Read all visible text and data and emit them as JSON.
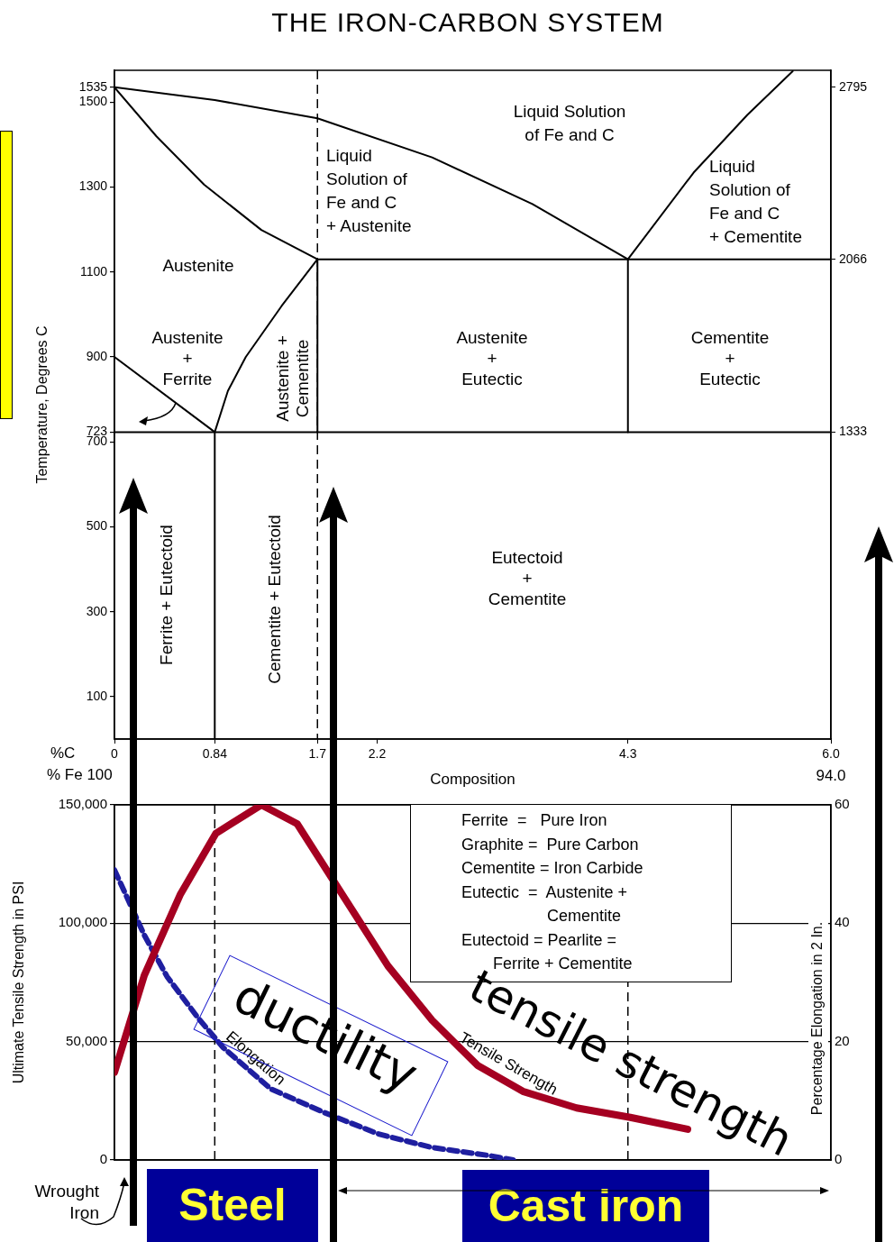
{
  "chart_data": [
    {
      "type": "line",
      "title": "THE IRON-CARBON SYSTEM",
      "xlabel": "Composition",
      "ylabel": "Temperature, Degrees C",
      "xlim": [
        0,
        6.0
      ],
      "xticks": [
        0,
        0.84,
        1.7,
        2.2,
        4.3,
        {
          "value": 6.0,
          "label": "6.0"
        }
      ],
      "ylim": [
        0,
        1575
      ],
      "yticks": [
        100,
        300,
        500,
        700,
        723,
        900,
        1100,
        1300,
        1500,
        1535
      ],
      "y2lim": [
        32,
        2867
      ],
      "y2ticks": [
        1333,
        2066,
        2795
      ],
      "grid": false,
      "legend": false,
      "marker": "none",
      "series": [
        {
          "color": "#000000",
          "x": [
            0,
            0.84,
            1.7,
            2.66,
            3.5,
            4.3
          ],
          "values": [
            1535,
            1505,
            1462,
            1370,
            1260,
            1130
          ]
        },
        {
          "color": "#000000",
          "x": [
            4.3,
            4.85,
            5.3,
            5.68
          ],
          "values": [
            1130,
            1334,
            1470,
            1573
          ]
        },
        {
          "color": "#000000",
          "x": [
            0,
            0.35,
            0.75,
            1.23,
            1.7
          ],
          "values": [
            1535,
            1420,
            1306,
            1199,
            1130
          ]
        },
        {
          "color": "#000000",
          "x": [
            1.7,
            6.0
          ],
          "values": [
            1130,
            1130
          ]
        },
        {
          "color": "#000000",
          "x": [
            0.84,
            0.84,
            0.95,
            1.1,
            1.4,
            1.7,
            1.7
          ],
          "values": [
            0,
            723,
            820,
            900,
            1020,
            1130,
            723
          ]
        },
        {
          "color": "#000000",
          "x": [
            0,
            0.84
          ],
          "values": [
            900,
            723
          ]
        },
        {
          "color": "#000000",
          "x": [
            0,
            6.0
          ],
          "values": [
            723,
            723
          ]
        },
        {
          "color": "#000000",
          "x": [
            4.3,
            4.3
          ],
          "values": [
            723,
            1130
          ]
        }
      ],
      "ref_lines": [
        {
          "axis": "x",
          "value": 1.7,
          "color": "#000000",
          "line_style": "dashed"
        }
      ],
      "annotations": [
        "Liquid Solution\nof Fe and C",
        "Liquid\nSolution of\nFe and C\n+ Austenite",
        "Liquid\nSolution of\nFe and C\n+ Cementite",
        "Austenite",
        "Austenite\n+\nFerrite",
        "Austenite +\nCementite",
        "Austenite\n+\nEutectic",
        "Cementite\n+\nEutectic",
        "Ferrite + Eutectoid",
        "Cementite + Eutectoid",
        "Eutectoid\n+\nCementite",
        "%C",
        "% Fe 100",
        "94.0"
      ]
    },
    {
      "type": "line",
      "ylabel": "Ultimate Tensile Strength in PSI",
      "y2label": "Percentage Elongation in 2 In.",
      "xlim": [
        0,
        6.0
      ],
      "ylim": [
        0,
        150000
      ],
      "yticks": [
        0,
        {
          "value": 50000,
          "label": "50,000"
        },
        {
          "value": 100000,
          "label": "100,000"
        },
        {
          "value": 150000,
          "label": "150,000"
        }
      ],
      "y2lim": [
        0,
        60
      ],
      "y2ticks": [
        0,
        20,
        40,
        60
      ],
      "tick_labels": "y",
      "grid": "y",
      "legend": false,
      "marker": "none",
      "series": [
        {
          "name": "Tensile Strength",
          "color": "#a50021",
          "x": [
            0,
            0.25,
            0.55,
            0.85,
            1.23,
            1.53,
            1.91,
            2.29,
            2.66,
            3.04,
            3.42,
            3.87,
            4.32,
            4.8
          ],
          "values": [
            37000,
            78000,
            112000,
            138000,
            150000,
            142000,
            112000,
            82000,
            59000,
            40000,
            29000,
            22000,
            18000,
            13000
          ]
        },
        {
          "name": "Elongation",
          "color": "#1f1fa0",
          "axis": "y2",
          "line_style": "dashed",
          "x": [
            0,
            0.25,
            0.44,
            0.7,
            0.91,
            1.31,
            1.76,
            2.21,
            2.66,
            3.12,
            3.34
          ],
          "values": [
            49,
            38,
            31,
            24,
            19,
            12,
            8,
            4.4,
            2.1,
            0.8,
            0
          ]
        }
      ],
      "ref_lines": [
        {
          "axis": "x",
          "value": 0.84,
          "color": "#000000",
          "line_style": "dashed"
        },
        {
          "axis": "x",
          "value": 4.3,
          "color": "#000000",
          "line_style": "dashed"
        }
      ],
      "annotations": [
        "Ferrite  =   Pure Iron\nGraphite =  Pure Carbon\nCementite = Iron Carbide\nEutectic  =  Austenite +\n                   Cementite\nEutectoid = Pearlite =\n       Ferrite + Cementite",
        "ductility",
        "tensile strength",
        "Steel",
        "Cast iron",
        "Wrought\nIron"
      ]
    }
  ]
}
